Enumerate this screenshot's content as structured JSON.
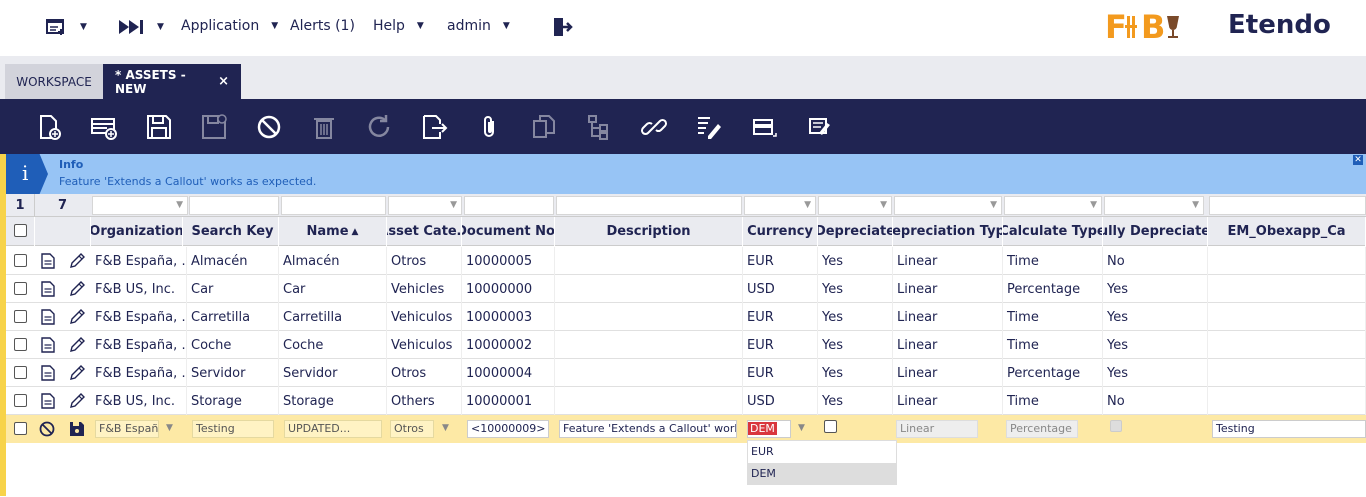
{
  "topbar": {
    "application_label": "Application",
    "alerts_label": "Alerts (1)",
    "help_label": "Help",
    "user_label": "admin",
    "brand_fb": "F+B",
    "brand_name": "Etendo"
  },
  "tabs": [
    {
      "label": "WORKSPACE"
    },
    {
      "label": "* ASSETS - NEW",
      "close": "×"
    }
  ],
  "info": {
    "title": "Info",
    "message": "Feature 'Extends a Callout' works as expected."
  },
  "grid": {
    "selected_count": "1",
    "total_count": "7",
    "columns": [
      "Organization",
      "Search Key",
      "Name",
      "Asset Cate…",
      "Document No.",
      "Description",
      "Currency",
      "Depreciate",
      "Depreciation Type",
      "Calculate Type",
      "Fully Depreciated",
      "EM_Obexapp_Ca"
    ],
    "sort_indicator": "▲",
    "rows": [
      {
        "org": "F&B España, …",
        "key": "Almacén",
        "name": "Almacén",
        "cat": "Otros",
        "doc": "10000005",
        "desc": "",
        "cur": "EUR",
        "dep": "Yes",
        "deptype": "Linear",
        "calc": "Time",
        "fully": "No"
      },
      {
        "org": "F&B US, Inc.",
        "key": "Car",
        "name": "Car",
        "cat": "Vehicles",
        "doc": "10000000",
        "desc": "",
        "cur": "USD",
        "dep": "Yes",
        "deptype": "Linear",
        "calc": "Percentage",
        "fully": "Yes"
      },
      {
        "org": "F&B España, …",
        "key": "Carretilla",
        "name": "Carretilla",
        "cat": "Vehiculos",
        "doc": "10000003",
        "desc": "",
        "cur": "EUR",
        "dep": "Yes",
        "deptype": "Linear",
        "calc": "Time",
        "fully": "Yes"
      },
      {
        "org": "F&B España, …",
        "key": "Coche",
        "name": "Coche",
        "cat": "Vehiculos",
        "doc": "10000002",
        "desc": "",
        "cur": "EUR",
        "dep": "Yes",
        "deptype": "Linear",
        "calc": "Time",
        "fully": "Yes"
      },
      {
        "org": "F&B España, …",
        "key": "Servidor",
        "name": "Servidor",
        "cat": "Otros",
        "doc": "10000004",
        "desc": "",
        "cur": "EUR",
        "dep": "Yes",
        "deptype": "Linear",
        "calc": "Percentage",
        "fully": "Yes"
      },
      {
        "org": "F&B US, Inc.",
        "key": "Storage",
        "name": "Storage",
        "cat": "Others",
        "doc": "10000001",
        "desc": "",
        "cur": "USD",
        "dep": "Yes",
        "deptype": "Linear",
        "calc": "Time",
        "fully": "No"
      }
    ],
    "edit_row": {
      "org": "F&B Españ",
      "key": "Testing",
      "name": "UPDATED...",
      "cat": "Otros",
      "doc": "<10000009>",
      "desc": "Feature 'Extends a Callout' work",
      "cur": "DEM",
      "deptype": "Linear",
      "calc": "Percentage",
      "extra": "Testing"
    },
    "currency_options": [
      "EUR",
      "DEM"
    ]
  },
  "colors": {
    "navy": "#202452",
    "info_bg": "#97c4f5",
    "edit_bg": "#fde9a5",
    "brand_orange": "#f39a1e"
  }
}
